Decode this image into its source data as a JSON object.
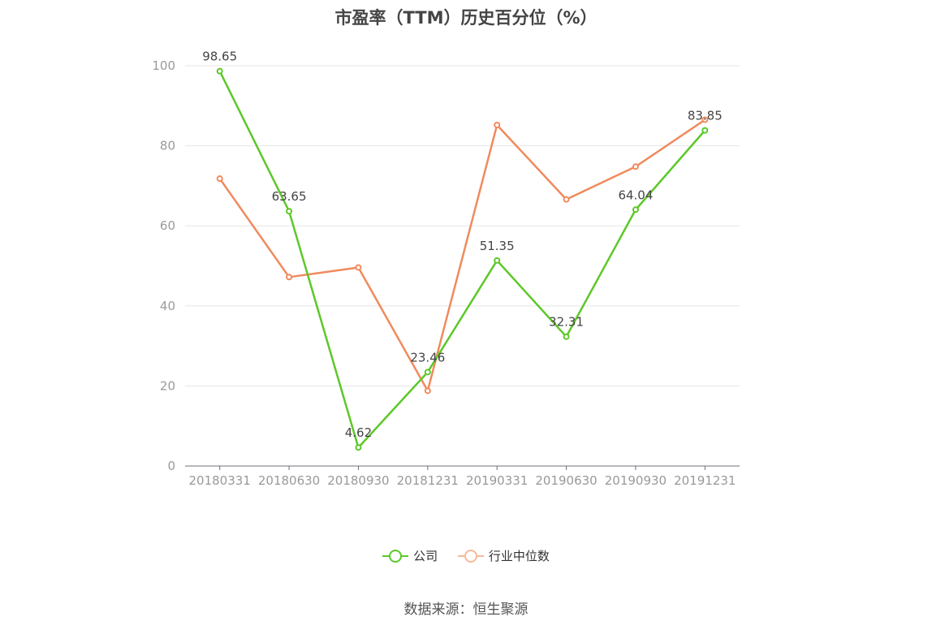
{
  "chart_data": {
    "type": "line",
    "title": "市盈率（TTM）历史百分位（%）",
    "categories": [
      "20180331",
      "20180630",
      "20180930",
      "20181231",
      "20190331",
      "20190630",
      "20190930",
      "20191231"
    ],
    "series": [
      {
        "name": "公司",
        "color": "#5cc828",
        "values": [
          98.65,
          63.65,
          4.62,
          23.46,
          51.35,
          32.31,
          64.04,
          83.85
        ],
        "labels": [
          "98.65",
          "63.65",
          "4.62",
          "23.46",
          "51.35",
          "32.31",
          "64.04",
          "83.85"
        ]
      },
      {
        "name": "行业中位数",
        "color": "#f08a5d",
        "values": [
          71.8,
          47.2,
          49.6,
          18.8,
          85.2,
          66.6,
          74.8,
          86.5
        ]
      }
    ],
    "yticks": [
      "0",
      "20",
      "40",
      "60",
      "80",
      "100"
    ],
    "ylim": [
      0,
      100
    ],
    "grid": true,
    "legend_position": "bottom"
  },
  "legend": {
    "company": "公司",
    "industry": "行业中位数"
  },
  "colors": {
    "company": "#5cc828",
    "industry": "#f08a5d",
    "industry_legend": "#f5b99c"
  },
  "source": "数据来源：恒生聚源"
}
